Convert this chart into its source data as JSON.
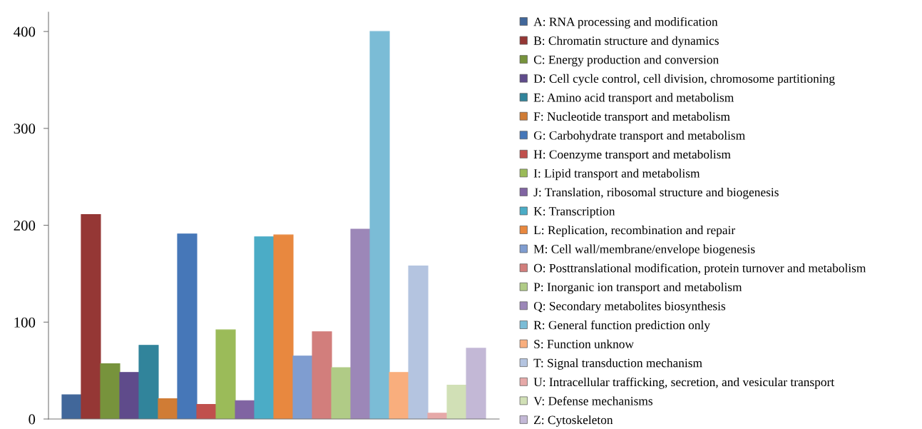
{
  "chart_data": {
    "type": "bar",
    "categories": [
      null
    ],
    "series": [
      {
        "name": "A: RNA processing and modification",
        "color": "#41679a",
        "values": [
          25
        ]
      },
      {
        "name": "B: Chromatin structure and dynamics",
        "color": "#953735",
        "values": [
          211
        ]
      },
      {
        "name": "C: Energy production and conversion",
        "color": "#77933c",
        "values": [
          57
        ]
      },
      {
        "name": "D: Cell cycle control, cell division, chromosome partitioning",
        "color": "#5f4b8b",
        "values": [
          48
        ]
      },
      {
        "name": "E: Amino acid transport and metabolism",
        "color": "#31849b",
        "values": [
          76
        ]
      },
      {
        "name": "F: Nucleotide transport and metabolism",
        "color": "#d07c35",
        "values": [
          21
        ]
      },
      {
        "name": "G: Carbohydrate transport and metabolism",
        "color": "#4677b8",
        "values": [
          191
        ]
      },
      {
        "name": "H: Coenzyme transport and metabolism",
        "color": "#c0504d",
        "values": [
          15
        ]
      },
      {
        "name": "I: Lipid transport and metabolism",
        "color": "#9bbb59",
        "values": [
          92
        ]
      },
      {
        "name": "J: Translation, ribosomal structure and biogenesis",
        "color": "#8064a2",
        "values": [
          19
        ]
      },
      {
        "name": "K: Transcription",
        "color": "#4bacc6",
        "values": [
          188
        ]
      },
      {
        "name": "L: Replication, recombination and repair",
        "color": "#e8883f",
        "values": [
          190
        ]
      },
      {
        "name": "M: Cell wall/membrane/envelope biogenesis",
        "color": "#7f9dd0",
        "values": [
          65
        ]
      },
      {
        "name": "O: Posttranslational modification, protein turnover and metabolism",
        "color": "#d27e7c",
        "values": [
          90
        ]
      },
      {
        "name": "P: Inorganic ion transport and metabolism",
        "color": "#b0cb86",
        "values": [
          53
        ]
      },
      {
        "name": "Q: Secondary metabolites biosynthesis",
        "color": "#9c87b8",
        "values": [
          196
        ]
      },
      {
        "name": "R: General function prediction only",
        "color": "#7bbcd6",
        "values": [
          400
        ]
      },
      {
        "name": "S: Function unknow",
        "color": "#f9ae7d",
        "values": [
          48
        ]
      },
      {
        "name": "T: Signal transduction mechanism",
        "color": "#b4c4e0",
        "values": [
          158
        ]
      },
      {
        "name": "U: Intracellular trafficking, secretion, and vesicular transport",
        "color": "#e6a9a8",
        "values": [
          6
        ]
      },
      {
        "name": "V: Defense mechanisms",
        "color": "#d1e0b6",
        "values": [
          35
        ]
      },
      {
        "name": "Z: Cytoskeleton",
        "color": "#c3b8d6",
        "values": [
          73
        ]
      }
    ],
    "ylim": [
      0,
      420
    ],
    "yticks": [
      0,
      100,
      200,
      300,
      400
    ],
    "grid": false,
    "legend": "right"
  }
}
